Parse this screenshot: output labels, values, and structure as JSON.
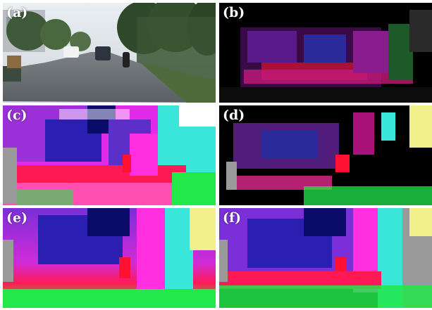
{
  "panels": [
    {
      "id": "a",
      "label": "(a)",
      "kind": "road scene photograph"
    },
    {
      "id": "b",
      "label": "(b)",
      "kind": "sparse depth / flow visualization"
    },
    {
      "id": "c",
      "label": "(c)",
      "kind": "dense flow visualization (noisy)"
    },
    {
      "id": "d",
      "label": "(d)",
      "kind": "sparse flow visualization"
    },
    {
      "id": "e",
      "label": "(e)",
      "kind": "dense flow visualization (smooth)"
    },
    {
      "id": "f",
      "label": "(f)",
      "kind": "dense flow visualization (textured)"
    }
  ],
  "colors": {
    "magenta": "#e02be8",
    "red": "#ff1133",
    "blue": "#2a1fb0",
    "green": "#22e84a",
    "cyan": "#39e6d9",
    "pink": "#ff4fb3",
    "gray": "#9a9a9a",
    "yellow": "#f2f08a"
  }
}
